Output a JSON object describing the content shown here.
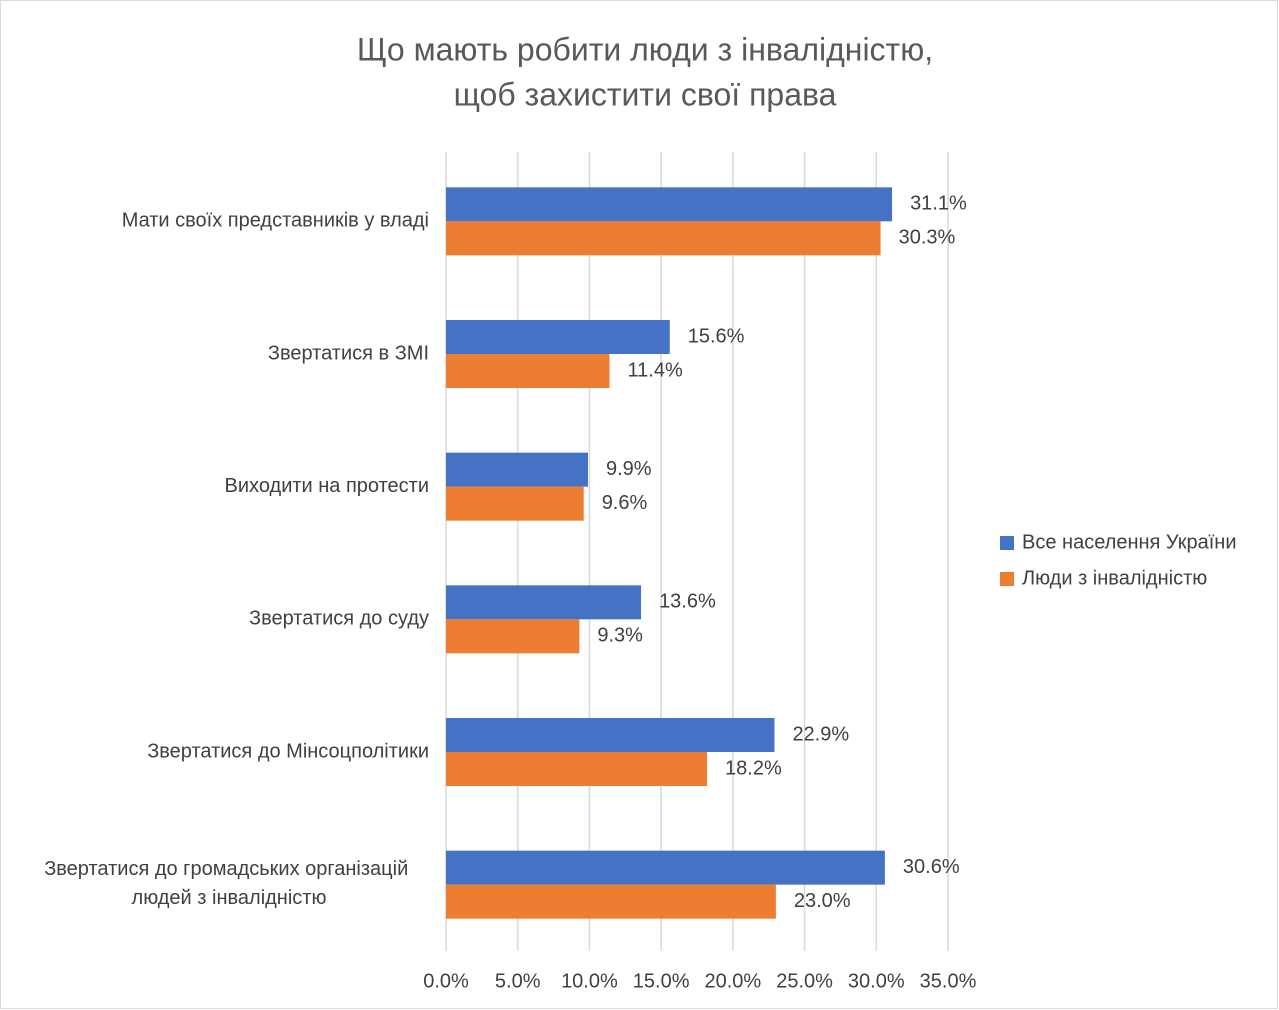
{
  "chart_data": {
    "type": "bar",
    "orientation": "horizontal",
    "title": [
      "Що мають робити люди з інвалідністю,",
      "щоб захистити свої права"
    ],
    "categories": [
      "Мати своїх представників у владі",
      "Звертатися в ЗМІ",
      "Виходити на протести",
      "Звертатися до суду",
      "Звертатися до Мінсоцполітики",
      "Звертатися до громадських організацій людей з інвалідністю"
    ],
    "series": [
      {
        "name": "Все населення України",
        "color": "#4472c4",
        "values": [
          31.1,
          15.6,
          9.9,
          13.6,
          22.9,
          30.6
        ],
        "value_labels": [
          "31.1%",
          "15.6%",
          "9.9%",
          "13.6%",
          "22.9%",
          "30.6%"
        ]
      },
      {
        "name": "Люди з інвалідністю",
        "color": "#ed7d31",
        "values": [
          30.3,
          11.4,
          9.6,
          9.3,
          18.2,
          23.0
        ],
        "value_labels": [
          "30.3%",
          "11.4%",
          "9.6%",
          "9.3%",
          "18.2%",
          "23.0%"
        ]
      }
    ],
    "xlim": [
      0,
      35
    ],
    "xticks": [
      {
        "value": 0,
        "label": "0.0%"
      },
      {
        "value": 5,
        "label": "5.0%"
      },
      {
        "value": 10,
        "label": "10.0%"
      },
      {
        "value": 15,
        "label": "15.0%"
      },
      {
        "value": 20,
        "label": "20.0%"
      },
      {
        "value": 25,
        "label": "25.0%"
      },
      {
        "value": 30,
        "label": "30.0%"
      },
      {
        "value": 35,
        "label": "35.0%"
      }
    ],
    "grid": true,
    "legend": "right"
  }
}
